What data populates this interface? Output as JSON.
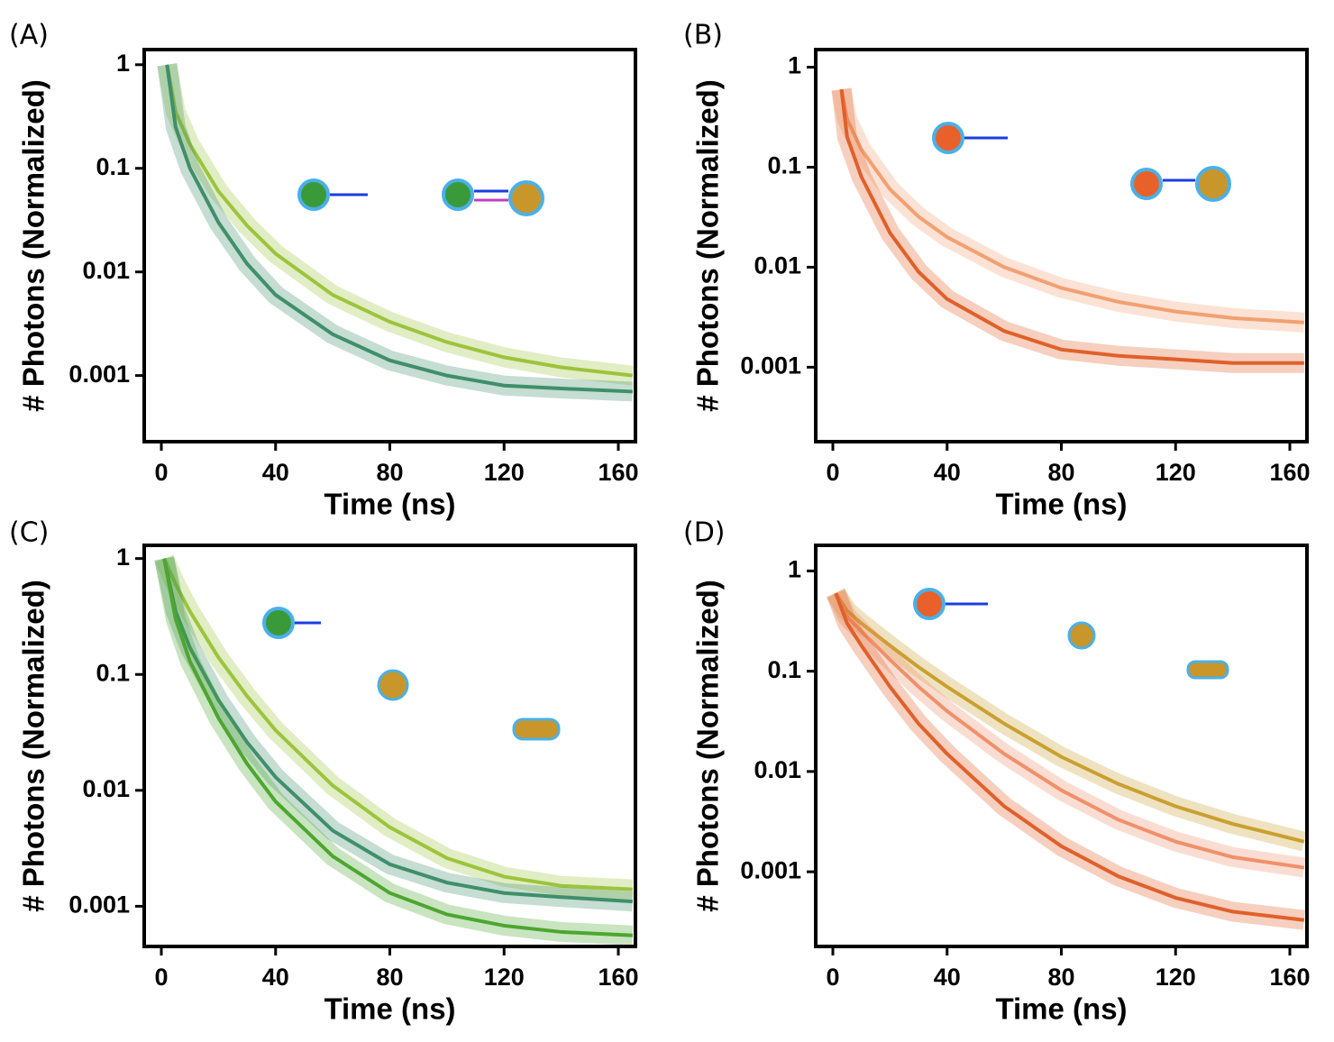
{
  "chart_data": [
    {
      "type": "line",
      "panel_label": "(A)",
      "xlabel": "Time (ns)",
      "ylabel": "# Photons (Normalized)",
      "log_y": true,
      "xlim": [
        -6,
        166
      ],
      "ylim": [
        0.00023,
        1.4
      ],
      "xticks": [
        0,
        40,
        80,
        120,
        160
      ],
      "yticks": [
        0.001,
        0.01,
        0.1,
        1
      ],
      "x": [
        2,
        5,
        10,
        20,
        30,
        40,
        60,
        80,
        100,
        120,
        140,
        165
      ],
      "series": [
        {
          "color": "#9cc43c",
          "values": [
            1,
            0.35,
            0.17,
            0.06,
            0.028,
            0.015,
            0.006,
            0.0033,
            0.0021,
            0.0015,
            0.0012,
            0.001
          ]
        },
        {
          "color": "#3f8f6a",
          "values": [
            1,
            0.25,
            0.1,
            0.03,
            0.012,
            0.006,
            0.0025,
            0.0014,
            0.001,
            0.0008,
            0.00075,
            0.0007
          ]
        }
      ]
    },
    {
      "type": "line",
      "panel_label": "(B)",
      "xlabel": "Time (ns)",
      "ylabel": "# Photons (Normalized)",
      "log_y": true,
      "xlim": [
        -6,
        166
      ],
      "ylim": [
        0.00018,
        1.5
      ],
      "xticks": [
        0,
        40,
        80,
        120,
        160
      ],
      "yticks": [
        0.001,
        0.01,
        0.1,
        1
      ],
      "x": [
        3,
        5,
        10,
        20,
        30,
        40,
        60,
        80,
        100,
        120,
        140,
        165
      ],
      "series": [
        {
          "color": "#f2a071",
          "values": [
            0.6,
            0.3,
            0.15,
            0.06,
            0.032,
            0.02,
            0.01,
            0.0062,
            0.0045,
            0.0036,
            0.0031,
            0.0028
          ]
        },
        {
          "color": "#e0602a",
          "values": [
            0.6,
            0.2,
            0.08,
            0.022,
            0.009,
            0.0048,
            0.0023,
            0.0015,
            0.0013,
            0.0012,
            0.0011,
            0.0011
          ]
        }
      ]
    },
    {
      "type": "line",
      "panel_label": "(C)",
      "xlabel": "Time (ns)",
      "ylabel": "# Photons (Normalized)",
      "log_y": true,
      "xlim": [
        -6,
        166
      ],
      "ylim": [
        0.00045,
        1.3
      ],
      "xticks": [
        0,
        40,
        80,
        120,
        160
      ],
      "yticks": [
        0.001,
        0.01,
        0.1,
        1
      ],
      "x": [
        1,
        5,
        10,
        20,
        30,
        40,
        60,
        80,
        100,
        120,
        140,
        165
      ],
      "series": [
        {
          "color": "#9cc43c",
          "values": [
            1,
            0.6,
            0.35,
            0.14,
            0.065,
            0.033,
            0.011,
            0.0048,
            0.0026,
            0.0018,
            0.0015,
            0.0014
          ]
        },
        {
          "color": "#3f8f6a",
          "values": [
            1,
            0.35,
            0.17,
            0.06,
            0.026,
            0.013,
            0.0045,
            0.0023,
            0.0016,
            0.0013,
            0.0012,
            0.0011
          ]
        },
        {
          "color": "#4da62f",
          "values": [
            1,
            0.3,
            0.13,
            0.042,
            0.017,
            0.008,
            0.0027,
            0.0013,
            0.00085,
            0.00068,
            0.0006,
            0.00056
          ]
        }
      ]
    },
    {
      "type": "line",
      "panel_label": "(D)",
      "xlabel": "Time (ns)",
      "ylabel": "# Photons (Normalized)",
      "log_y": true,
      "xlim": [
        -6,
        166
      ],
      "ylim": [
        0.00018,
        1.8
      ],
      "xticks": [
        0,
        40,
        80,
        120,
        160
      ],
      "yticks": [
        0.001,
        0.01,
        0.1,
        1
      ],
      "x": [
        1,
        5,
        10,
        20,
        30,
        40,
        60,
        80,
        100,
        120,
        140,
        165
      ],
      "series": [
        {
          "color": "#c9a030",
          "values": [
            0.6,
            0.4,
            0.3,
            0.18,
            0.11,
            0.07,
            0.03,
            0.014,
            0.0075,
            0.0045,
            0.003,
            0.002
          ]
        },
        {
          "color": "#f0906a",
          "values": [
            0.6,
            0.35,
            0.25,
            0.13,
            0.07,
            0.04,
            0.015,
            0.0065,
            0.0033,
            0.002,
            0.0014,
            0.0011
          ]
        },
        {
          "color": "#e0602a",
          "values": [
            0.6,
            0.3,
            0.18,
            0.07,
            0.03,
            0.015,
            0.0045,
            0.0018,
            0.0009,
            0.00055,
            0.0004,
            0.00033
          ]
        }
      ]
    }
  ]
}
